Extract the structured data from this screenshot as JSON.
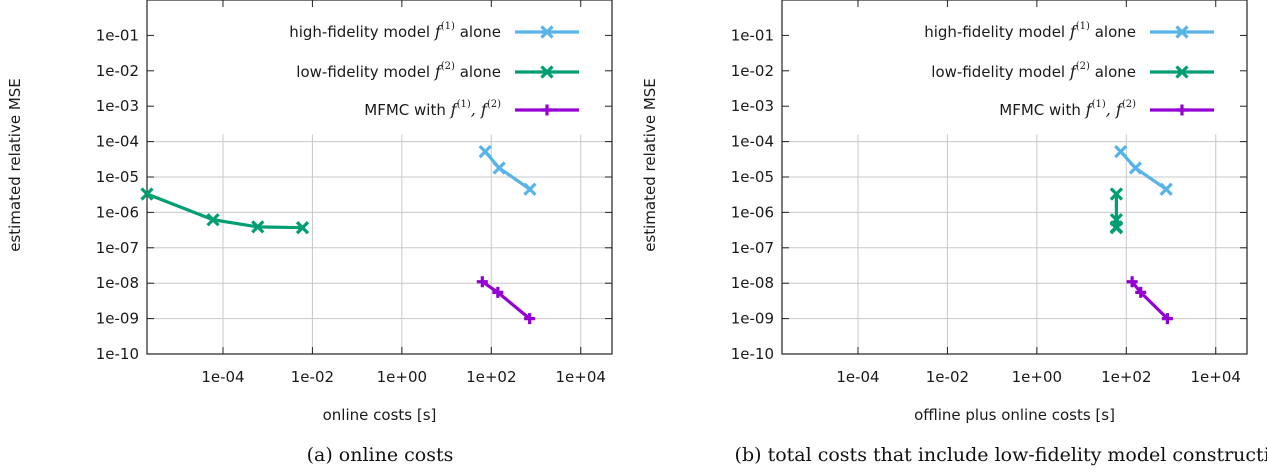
{
  "chart_data": [
    {
      "type": "line",
      "caption": "(a) online costs",
      "xlabel": "online costs [s]",
      "ylabel": "estimated relative MSE",
      "x_scale": "log",
      "y_scale": "log",
      "xlim": [
        2e-06,
        50000
      ],
      "ylim": [
        1e-10,
        1
      ],
      "x_ticks": [
        "1e-04",
        "1e-02",
        "1e+00",
        "1e+02",
        "1e+04"
      ],
      "y_ticks": [
        "1e-01",
        "1e-02",
        "1e-03",
        "1e-04",
        "1e-05",
        "1e-06",
        "1e-07",
        "1e-08",
        "1e-09",
        "1e-10"
      ],
      "grid": true,
      "legend_position": "top-right",
      "series": [
        {
          "name_prefix": "high-fidelity model",
          "name_math": "f",
          "name_sup": "(1)",
          "name_suffix": "alone",
          "color": "#56b4e9",
          "marker": "x",
          "points": [
            [
              73,
              5.2e-05
            ],
            [
              150,
              1.8e-05
            ],
            [
              730,
              4.5e-06
            ]
          ]
        },
        {
          "name_prefix": "low-fidelity model",
          "name_math": "f",
          "name_sup": "(2)",
          "name_suffix": "alone",
          "color": "#009e73",
          "marker": "x",
          "points": [
            [
              2e-06,
              3.3e-06
            ],
            [
              6e-05,
              6.2e-07
            ],
            [
              0.0006,
              3.9e-07
            ],
            [
              0.006,
              3.7e-07
            ]
          ]
        },
        {
          "name_prefix": "MFMC with",
          "name_math": "f",
          "name_sup": "(1)",
          "name_math2": "f",
          "name_sup2": "(2)",
          "name_suffix": "",
          "color": "#9400d3",
          "marker": "plus",
          "points": [
            [
              63,
              1.1e-08
            ],
            [
              140,
              5.5e-09
            ],
            [
              720,
              1e-09
            ]
          ]
        }
      ]
    },
    {
      "type": "line",
      "caption": "(b) total costs that include low-fidelity model construction",
      "xlabel": "offline plus online costs [s]",
      "ylabel": "estimated relative MSE",
      "x_scale": "log",
      "y_scale": "log",
      "xlim": [
        2e-06,
        50000
      ],
      "ylim": [
        1e-10,
        1
      ],
      "x_ticks": [
        "1e-04",
        "1e-02",
        "1e+00",
        "1e+02",
        "1e+04"
      ],
      "y_ticks": [
        "1e-01",
        "1e-02",
        "1e-03",
        "1e-04",
        "1e-05",
        "1e-06",
        "1e-07",
        "1e-08",
        "1e-09",
        "1e-10"
      ],
      "grid": true,
      "legend_position": "top-right",
      "series": [
        {
          "name_prefix": "high-fidelity model",
          "name_math": "f",
          "name_sup": "(1)",
          "name_suffix": "alone",
          "color": "#56b4e9",
          "marker": "x",
          "points": [
            [
              75,
              5.2e-05
            ],
            [
              160,
              1.8e-05
            ],
            [
              780,
              4.5e-06
            ]
          ]
        },
        {
          "name_prefix": "low-fidelity model",
          "name_math": "f",
          "name_sup": "(2)",
          "name_suffix": "alone",
          "color": "#009e73",
          "marker": "x",
          "points": [
            [
              60,
              3.3e-06
            ],
            [
              60,
              6.2e-07
            ],
            [
              60,
              3.9e-07
            ],
            [
              60,
              3.7e-07
            ]
          ]
        },
        {
          "name_prefix": "MFMC with",
          "name_math": "f",
          "name_sup": "(1)",
          "name_math2": "f",
          "name_sup2": "(2)",
          "name_suffix": "",
          "color": "#9400d3",
          "marker": "plus",
          "points": [
            [
              135,
              1.1e-08
            ],
            [
              210,
              5.5e-09
            ],
            [
              830,
              1e-09
            ]
          ]
        }
      ]
    }
  ]
}
